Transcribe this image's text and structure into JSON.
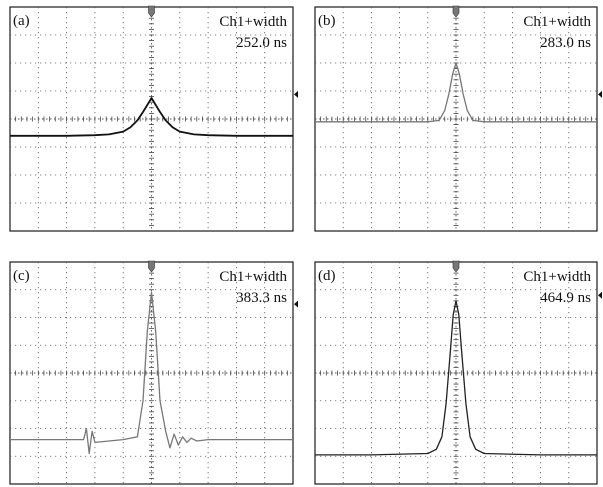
{
  "chart_data": [
    {
      "type": "line",
      "panel_label": "(a)",
      "measurement_label": "Ch1+width",
      "measurement_value": "252.0 ns",
      "x": [
        -5,
        -4,
        -3,
        -2,
        -1.5,
        -1,
        -0.75,
        -0.5,
        -0.3,
        -0.15,
        0,
        0.15,
        0.3,
        0.5,
        0.75,
        1,
        1.5,
        2,
        3,
        4,
        5
      ],
      "series": [
        {
          "values": [
            -0.6,
            -0.6,
            -0.6,
            -0.58,
            -0.55,
            -0.45,
            -0.3,
            -0.05,
            0.25,
            0.5,
            0.75,
            0.5,
            0.25,
            -0.05,
            -0.3,
            -0.45,
            -0.55,
            -0.58,
            -0.6,
            -0.6,
            -0.6
          ]
        }
      ],
      "xlim": [
        -5,
        5
      ],
      "ylim": [
        -4,
        4
      ],
      "grid": true,
      "trace_color": "#111111"
    },
    {
      "type": "line",
      "panel_label": "(b)",
      "measurement_label": "Ch1+width",
      "measurement_value": "283.0 ns",
      "x": [
        -5,
        -3,
        -1,
        -0.6,
        -0.4,
        -0.25,
        -0.12,
        0,
        0.12,
        0.25,
        0.4,
        0.6,
        1,
        3,
        5
      ],
      "series": [
        {
          "values": [
            -0.1,
            -0.1,
            -0.1,
            -0.05,
            0.3,
            0.9,
            1.6,
            2.0,
            1.6,
            0.9,
            0.3,
            -0.05,
            -0.1,
            -0.1,
            -0.1
          ]
        }
      ],
      "xlim": [
        -5,
        5
      ],
      "ylim": [
        -4,
        4
      ],
      "grid": true,
      "trace_color": "#777777"
    },
    {
      "type": "line",
      "panel_label": "(c)",
      "measurement_label": "Ch1+width",
      "measurement_value": "383.3 ns",
      "x": [
        -5,
        -3,
        -2.4,
        -2.3,
        -2.2,
        -2.1,
        -2.0,
        -1,
        -0.5,
        -0.3,
        -0.15,
        0,
        0.15,
        0.3,
        0.5,
        0.65,
        0.8,
        0.95,
        1.1,
        1.25,
        1.4,
        1.6,
        2,
        3,
        5
      ],
      "series": [
        {
          "values": [
            -2.4,
            -2.4,
            -2.4,
            -2.0,
            -2.9,
            -2.1,
            -2.5,
            -2.4,
            -2.3,
            -1.0,
            1.5,
            2.9,
            1.5,
            -1.0,
            -2.1,
            -2.7,
            -2.2,
            -2.6,
            -2.3,
            -2.5,
            -2.35,
            -2.45,
            -2.4,
            -2.4,
            -2.4
          ]
        }
      ],
      "xlim": [
        -5,
        5
      ],
      "ylim": [
        -4,
        4
      ],
      "grid": true,
      "trace_color": "#777777"
    },
    {
      "type": "line",
      "panel_label": "(d)",
      "measurement_label": "Ch1+width",
      "measurement_value": "464.9 ns",
      "x": [
        -5,
        -3,
        -1,
        -0.7,
        -0.5,
        -0.35,
        -0.2,
        -0.1,
        0,
        0.1,
        0.2,
        0.35,
        0.5,
        0.7,
        1,
        3,
        5
      ],
      "series": [
        {
          "values": [
            -2.95,
            -2.95,
            -2.9,
            -2.75,
            -2.3,
            -1.1,
            0.8,
            2.1,
            2.6,
            2.1,
            0.8,
            -1.1,
            -2.3,
            -2.75,
            -2.9,
            -2.95,
            -2.95
          ]
        }
      ],
      "xlim": [
        -5,
        5
      ],
      "ylim": [
        -4,
        4
      ],
      "grid": true,
      "trace_color": "#222222"
    }
  ]
}
